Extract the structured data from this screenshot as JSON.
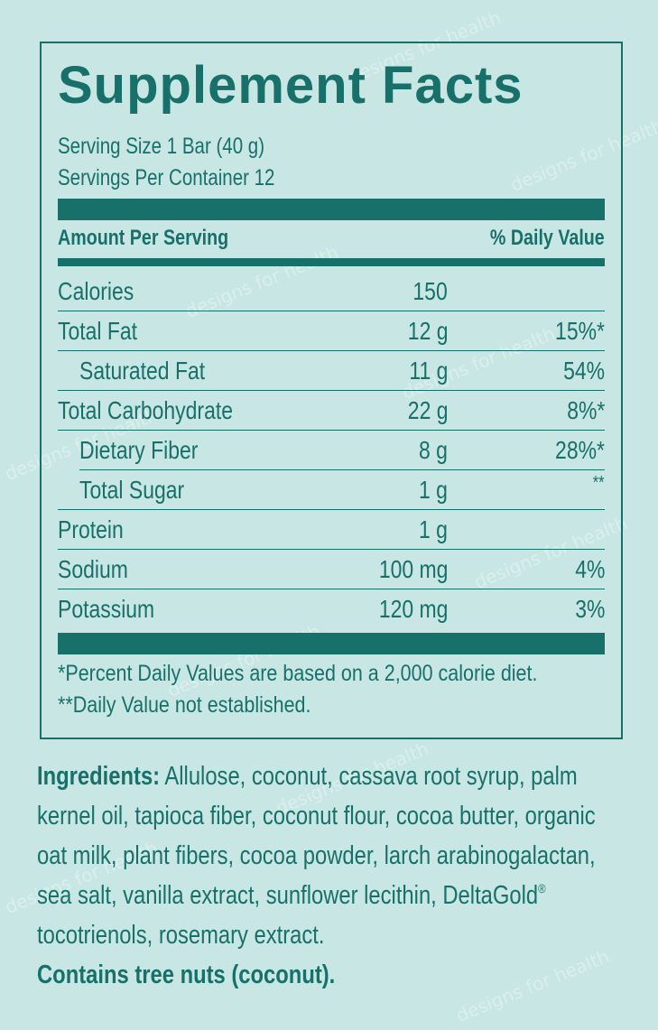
{
  "watermark": "designs for health",
  "facts": {
    "title": "Supplement Facts",
    "serving_size": "Serving Size 1 Bar (40 g)",
    "servings_per_container": "Servings Per Container 12",
    "amount_header": "Amount Per Serving",
    "dv_header": "% Daily Value",
    "rows": [
      {
        "name": "Calories",
        "amount": "150",
        "dv": ""
      },
      {
        "name": "Total Fat",
        "amount": "12 g",
        "dv": "15%*"
      },
      {
        "name": "Saturated Fat",
        "amount": "11 g",
        "dv": "54%"
      },
      {
        "name": "Total Carbohydrate",
        "amount": "22 g",
        "dv": "8%*"
      },
      {
        "name": "Dietary Fiber",
        "amount": "8 g",
        "dv": "28%*"
      },
      {
        "name": "Total Sugar",
        "amount": "1 g",
        "dv": "**"
      },
      {
        "name": "Protein",
        "amount": "1 g",
        "dv": ""
      },
      {
        "name": "Sodium",
        "amount": "100 mg",
        "dv": "4%"
      },
      {
        "name": "Potassium",
        "amount": "120 mg",
        "dv": "3%"
      }
    ],
    "footnote_1": "*Percent Daily Values are based on a 2,000 calorie diet.",
    "footnote_2": "**Daily Value not established."
  },
  "ingredients": {
    "label": "Ingredients:",
    "text_1": " Allulose, coconut, cassava root syrup, palm kernel oil, tapioca fiber, coconut flour, cocoa butter, organic oat milk, plant fibers, cocoa powder, larch arabinogalactan, sea salt, vanilla extract, sunflower lecithin, DeltaGold",
    "registered": "®",
    "text_2": " tocotrienols, rosemary extract.",
    "contains": "Contains tree nuts (coconut)."
  },
  "colors": {
    "background": "#c8e6e4",
    "brand_teal": "#17706a"
  }
}
